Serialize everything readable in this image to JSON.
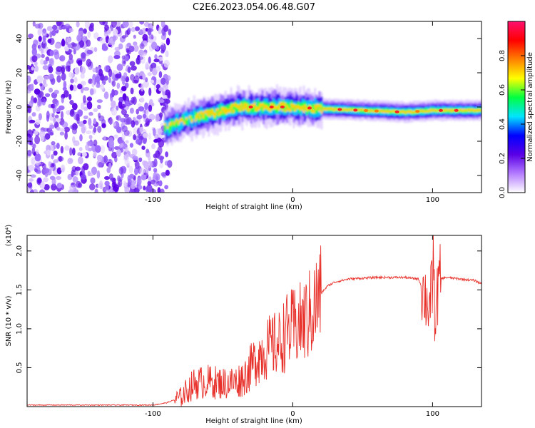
{
  "figure": {
    "title": "C2E6.2023.054.06.48.G07"
  },
  "chart_data": [
    {
      "type": "heatmap",
      "xlabel": "Height of straight line (km)",
      "ylabel": "Frequency (Hz)",
      "xlim": [
        -190,
        135
      ],
      "ylim": [
        -50,
        50
      ],
      "xticks": [
        -100,
        0,
        100
      ],
      "yticks": [
        -40,
        -20,
        0,
        20,
        40
      ],
      "grid": false,
      "colorbar": {
        "label": "Normalized spectral amplitude",
        "range": [
          0,
          1
        ],
        "ticks": [
          "0.0",
          "0.2",
          "0.4",
          "0.6",
          "0.8"
        ],
        "colormap": [
          "#ffffff",
          "#b47cff",
          "#5a00e6",
          "#0000ff",
          "#00e5ff",
          "#00ff40",
          "#ffff00",
          "#ff8000",
          "#ff0000",
          "#ff1070"
        ]
      },
      "regions": [
        {
          "x": [
            -190,
            -92
          ],
          "description_level": 0.35,
          "kind": "noise"
        },
        {
          "x": [
            -92,
            135
          ],
          "center_freq": [
            -12,
            -10,
            -6,
            -3,
            0,
            0,
            0,
            -1,
            -2,
            -3,
            -2,
            -2
          ],
          "center_x": [
            -92,
            -85,
            -70,
            -55,
            -40,
            -20,
            0,
            20,
            50,
            80,
            100,
            135
          ],
          "kind": "signal"
        }
      ]
    },
    {
      "type": "line",
      "xlabel": "Height of straight line (km)",
      "ylabel": "SNR (10 * v/v)",
      "yscale_label": "(x10⁴)",
      "xlim": [
        -190,
        135
      ],
      "ylim": [
        0,
        2.2
      ],
      "xticks": [
        -100,
        0,
        100
      ],
      "yticks": [
        0.5,
        1.0,
        1.5,
        2.0
      ],
      "grid": false,
      "series": [
        {
          "color": "#e8302a",
          "x": [
            -190,
            -150,
            -120,
            -100,
            -90,
            -80,
            -75,
            -70,
            -60,
            -50,
            -40,
            -35,
            -30,
            -25,
            -20,
            -15,
            -10,
            -5,
            0,
            5,
            10,
            15,
            20,
            25,
            30,
            40,
            50,
            60,
            70,
            80,
            90,
            95,
            98,
            100,
            102,
            105,
            110,
            120,
            130,
            135
          ],
          "y": [
            0.02,
            0.02,
            0.02,
            0.02,
            0.05,
            0.12,
            0.22,
            0.3,
            0.32,
            0.3,
            0.32,
            0.38,
            0.5,
            0.65,
            0.72,
            0.78,
            0.8,
            0.95,
            1.0,
            1.05,
            1.12,
            1.25,
            1.45,
            1.55,
            1.6,
            1.64,
            1.65,
            1.66,
            1.66,
            1.66,
            1.64,
            1.4,
            1.3,
            1.55,
            1.2,
            1.64,
            1.66,
            1.64,
            1.62,
            1.58
          ]
        }
      ]
    }
  ]
}
